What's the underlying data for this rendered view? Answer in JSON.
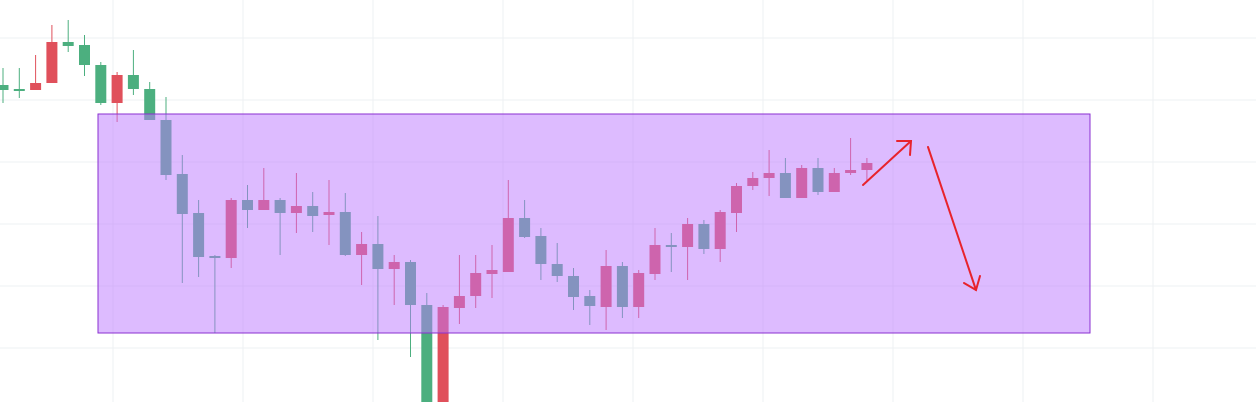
{
  "chart_data": {
    "type": "candlestick",
    "ylim": [
      0,
      402
    ],
    "up_color": "#4caf7f",
    "down_color": "#e0505b",
    "open": [
      312,
      311,
      319,
      360,
      356,
      337,
      299,
      327,
      313,
      282,
      227,
      188,
      145,
      144,
      202,
      192,
      202,
      189,
      196,
      186,
      190,
      147,
      158,
      133,
      140,
      97,
      0,
      95,
      106,
      129,
      132,
      184,
      165,
      138,
      126,
      105,
      96,
      136,
      95,
      129,
      157,
      155,
      178,
      153,
      190,
      216,
      224,
      229,
      204,
      234,
      210,
      229,
      232,
      239
    ],
    "high": [
      334,
      334,
      347,
      377,
      382,
      367,
      340,
      330,
      352,
      320,
      305,
      247,
      202,
      147,
      204,
      217,
      234,
      204,
      229,
      210,
      222,
      209,
      170,
      186,
      147,
      142,
      109,
      97,
      147,
      147,
      157,
      222,
      202,
      174,
      159,
      134,
      112,
      152,
      140,
      132,
      174,
      169,
      184,
      182,
      192,
      219,
      230,
      252,
      244,
      237,
      244,
      234,
      264,
      244
    ],
    "low": [
      299,
      304,
      312,
      319,
      350,
      326,
      297,
      280,
      307,
      282,
      222,
      119,
      125,
      69,
      134,
      174,
      192,
      147,
      169,
      170,
      157,
      146,
      117,
      62,
      97,
      45,
      0,
      0,
      78,
      94,
      104,
      130,
      164,
      122,
      120,
      92,
      77,
      72,
      84,
      84,
      122,
      130,
      122,
      148,
      140,
      170,
      212,
      206,
      204,
      204,
      207,
      210,
      227,
      221
    ],
    "close": [
      317,
      313,
      312,
      319,
      360,
      357,
      337,
      299,
      327,
      313,
      282,
      228,
      189,
      146,
      144,
      202,
      192,
      202,
      189,
      196,
      187,
      190,
      147,
      158,
      133,
      140,
      97,
      0,
      94,
      106,
      128,
      130,
      184,
      166,
      138,
      126,
      106,
      95,
      136,
      95,
      128,
      157,
      155,
      178,
      153,
      189,
      216,
      224,
      229,
      204,
      234,
      210,
      229,
      232
    ]
  }
}
